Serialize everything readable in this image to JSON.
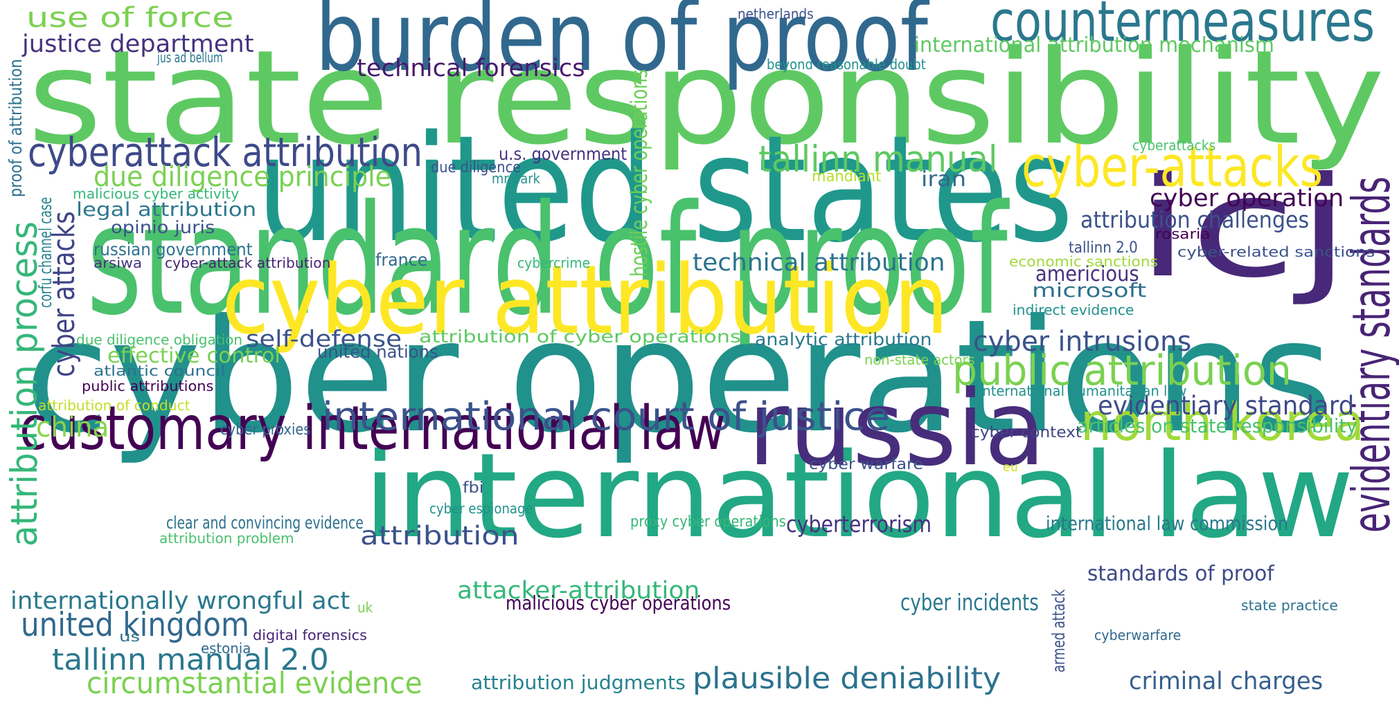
{
  "words": [
    {
      "text": "cyber operations",
      "color": "#21918c"
    },
    {
      "text": "state responsibility",
      "color": "#5ec962"
    },
    {
      "text": "united states",
      "color": "#1f988b"
    },
    {
      "text": "standard of proof",
      "color": "#4ac16d"
    },
    {
      "text": "international law",
      "color": "#22a884"
    },
    {
      "text": "burden of proof",
      "color": "#31688e"
    },
    {
      "text": "icj",
      "color": "#482878"
    },
    {
      "text": "cyber attribution",
      "color": "#fde725"
    },
    {
      "text": "russia",
      "color": "#472d7b"
    },
    {
      "text": "customary international law",
      "color": "#440154"
    },
    {
      "text": "countermeasures",
      "color": "#2a788e"
    },
    {
      "text": "cyber-attacks",
      "color": "#fde725"
    },
    {
      "text": "evidentiary standards",
      "color": "#482475"
    },
    {
      "text": "north korea",
      "color": "#a0da39"
    },
    {
      "text": "public attribution",
      "color": "#7ad151"
    },
    {
      "text": "international court of justice",
      "color": "#3b528b"
    },
    {
      "text": "cyberattack attribution",
      "color": "#3e4a89"
    },
    {
      "text": "tallinn manual",
      "color": "#5ec962"
    },
    {
      "text": "attribution process",
      "color": "#35b779"
    },
    {
      "text": "cyber attacks",
      "color": "#414487"
    },
    {
      "text": "circumstantial evidence",
      "color": "#7ad151"
    },
    {
      "text": "plausible deniability",
      "color": "#2c728e"
    },
    {
      "text": "tallinn manual 2.0",
      "color": "#2a788e"
    },
    {
      "text": "united kingdom",
      "color": "#31688e"
    },
    {
      "text": "due diligence principle",
      "color": "#7ad151"
    },
    {
      "text": "cyber intrusions",
      "color": "#3b528b"
    },
    {
      "text": "evidentiary standard",
      "color": "#3e4a89"
    },
    {
      "text": "cyber operation",
      "color": "#440154"
    },
    {
      "text": "technical attribution",
      "color": "#2c728e"
    },
    {
      "text": "justice department",
      "color": "#46327e"
    },
    {
      "text": "use of force",
      "color": "#7ad151"
    },
    {
      "text": "international attribution mechanism",
      "color": "#5ec962"
    },
    {
      "text": "technical forensics",
      "color": "#481a6c"
    },
    {
      "text": "attribution",
      "color": "#3b528b"
    },
    {
      "text": "internationally wrongful act",
      "color": "#2a788e"
    },
    {
      "text": "attacker-attribution",
      "color": "#35b779"
    },
    {
      "text": "self-defense",
      "color": "#3b528b"
    },
    {
      "text": "attribution challenges",
      "color": "#3b528b"
    },
    {
      "text": "china",
      "color": "#86d549"
    },
    {
      "text": "effective control",
      "color": "#7ad151"
    },
    {
      "text": "cyber incidents",
      "color": "#2a788e"
    },
    {
      "text": "cyberterrorism",
      "color": "#46337e"
    },
    {
      "text": "standards of proof",
      "color": "#3e4a89"
    },
    {
      "text": "criminal charges",
      "color": "#355f8d"
    },
    {
      "text": "attribution judgments",
      "color": "#26828e"
    },
    {
      "text": "legal attribution",
      "color": "#2a788e"
    },
    {
      "text": "microsoft",
      "color": "#2c728e"
    },
    {
      "text": "americious",
      "color": "#46327e"
    },
    {
      "text": "iran",
      "color": "#31688e"
    },
    {
      "text": "attribution of cyber operations",
      "color": "#5ec962"
    },
    {
      "text": "opinio juris",
      "color": "#3b528b"
    },
    {
      "text": "russian government",
      "color": "#2c728e"
    },
    {
      "text": "articles on state responsibility",
      "color": "#4ac16d"
    },
    {
      "text": "international law commission",
      "color": "#2a788e"
    },
    {
      "text": "malicious cyber operations",
      "color": "#440154"
    },
    {
      "text": "hostile cyber operations",
      "color": "#6ece58"
    },
    {
      "text": "analytic attribution",
      "color": "#2a788e"
    },
    {
      "text": "united nations",
      "color": "#3b528b"
    },
    {
      "text": "u.s. government",
      "color": "#46327e"
    },
    {
      "text": "france",
      "color": "#31688e"
    },
    {
      "text": "mandiant",
      "color": "#b5de2b"
    },
    {
      "text": "indirect evidence",
      "color": "#21918c"
    },
    {
      "text": "proxy cyber operations",
      "color": "#35b779"
    },
    {
      "text": "clear and convincing evidence",
      "color": "#2c728e"
    },
    {
      "text": "cyber proxies",
      "color": "#31688e"
    },
    {
      "text": "cyber warfare",
      "color": "#3b528b"
    },
    {
      "text": "cyber espionage",
      "color": "#21918c"
    },
    {
      "text": "cyber context",
      "color": "#414487"
    },
    {
      "text": "fbi",
      "color": "#3b528b"
    },
    {
      "text": "tallinn 2.0",
      "color": "#3b528b"
    },
    {
      "text": "cyber-related sanctions",
      "color": "#3b528b"
    },
    {
      "text": "rosaria",
      "color": "#440154"
    },
    {
      "text": "economic sanctions",
      "color": "#a0da39"
    },
    {
      "text": "non-state actors",
      "color": "#7ad151"
    },
    {
      "text": "international humanitarian law",
      "color": "#21918c"
    },
    {
      "text": "beyond reasonable doubt",
      "color": "#21918c"
    },
    {
      "text": "netherlands",
      "color": "#3b528b"
    },
    {
      "text": "jus ad bellum",
      "color": "#2a788e"
    },
    {
      "text": "proof of attribution",
      "color": "#2c728e"
    },
    {
      "text": "corfu channel case",
      "color": "#26828e"
    },
    {
      "text": "malicious cyber activity",
      "color": "#35b779"
    },
    {
      "text": "due diligence",
      "color": "#3b528b"
    },
    {
      "text": "mr park",
      "color": "#21918c"
    },
    {
      "text": "cybercrime",
      "color": "#35b779"
    },
    {
      "text": "arsiwa",
      "color": "#46327e"
    },
    {
      "text": "cyber-attack attribution",
      "color": "#482475"
    },
    {
      "text": "due diligence obligation",
      "color": "#4ac16d"
    },
    {
      "text": "atlantic council",
      "color": "#2c728e"
    },
    {
      "text": "public attributions",
      "color": "#440154"
    },
    {
      "text": "attribution of conduct",
      "color": "#c2df23"
    },
    {
      "text": "attribution problem",
      "color": "#4ac16d"
    },
    {
      "text": "eu",
      "color": "#d2e21b"
    },
    {
      "text": "uk",
      "color": "#7ad151"
    },
    {
      "text": "us",
      "color": "#2c728e"
    },
    {
      "text": "estonia",
      "color": "#31688e"
    },
    {
      "text": "digital forensics",
      "color": "#482475"
    },
    {
      "text": "armed attack",
      "color": "#3b528b"
    },
    {
      "text": "cyberwarfare",
      "color": "#31688e"
    },
    {
      "text": "state practice",
      "color": "#2c728e"
    },
    {
      "text": "cyberattacks",
      "color": "#4ac16d"
    }
  ]
}
